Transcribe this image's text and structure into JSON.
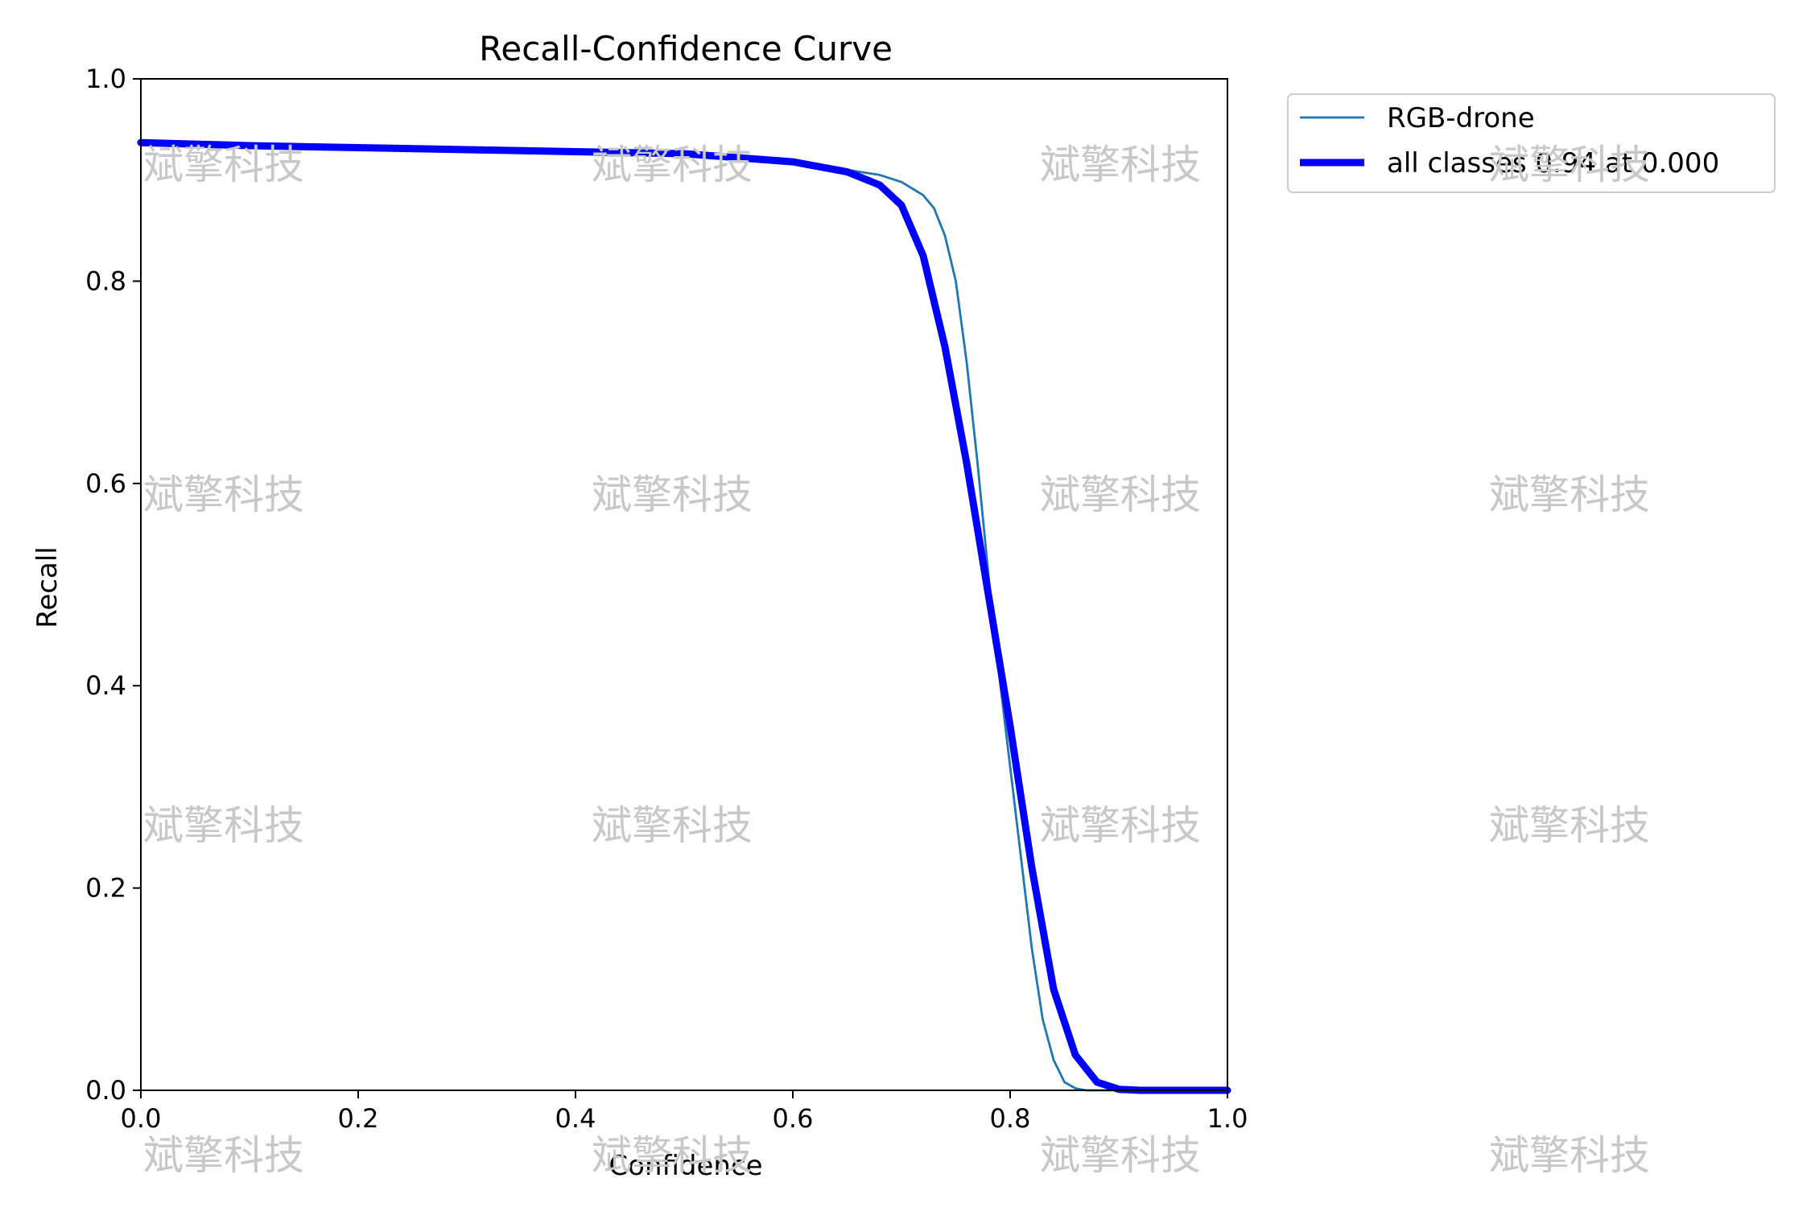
{
  "chart_data": {
    "type": "line",
    "title": "Recall-Confidence Curve",
    "xlabel": "Confidence",
    "ylabel": "Recall",
    "xlim": [
      0.0,
      1.0
    ],
    "ylim": [
      0.0,
      1.0
    ],
    "x_ticks": [
      "0.0",
      "0.2",
      "0.4",
      "0.6",
      "0.8",
      "1.0"
    ],
    "y_ticks": [
      "0.0",
      "0.2",
      "0.4",
      "0.6",
      "0.8",
      "1.0"
    ],
    "grid": false,
    "legend_placement": "outside-top-right",
    "series": [
      {
        "name": "RGB-drone",
        "color": "#1f77b4",
        "x": [
          0.0,
          0.1,
          0.2,
          0.3,
          0.4,
          0.5,
          0.6,
          0.65,
          0.68,
          0.7,
          0.72,
          0.73,
          0.74,
          0.75,
          0.76,
          0.77,
          0.78,
          0.79,
          0.8,
          0.81,
          0.82,
          0.83,
          0.84,
          0.85,
          0.86,
          0.87,
          0.9,
          1.0
        ],
        "y": [
          0.937,
          0.935,
          0.933,
          0.931,
          0.929,
          0.925,
          0.918,
          0.91,
          0.905,
          0.898,
          0.885,
          0.872,
          0.845,
          0.8,
          0.72,
          0.62,
          0.51,
          0.41,
          0.32,
          0.23,
          0.14,
          0.07,
          0.03,
          0.008,
          0.002,
          0.0,
          0.0,
          0.0
        ]
      },
      {
        "name": "all classes 0.94 at 0.000",
        "color": "#0000ff",
        "x": [
          0.0,
          0.1,
          0.2,
          0.3,
          0.4,
          0.5,
          0.6,
          0.65,
          0.68,
          0.7,
          0.72,
          0.74,
          0.76,
          0.78,
          0.8,
          0.82,
          0.84,
          0.86,
          0.88,
          0.9,
          0.92,
          1.0
        ],
        "y": [
          0.937,
          0.934,
          0.932,
          0.93,
          0.928,
          0.926,
          0.918,
          0.908,
          0.895,
          0.875,
          0.825,
          0.735,
          0.62,
          0.49,
          0.36,
          0.22,
          0.1,
          0.035,
          0.008,
          0.001,
          0.0,
          0.0
        ]
      }
    ],
    "watermark": "斌擎科技"
  }
}
